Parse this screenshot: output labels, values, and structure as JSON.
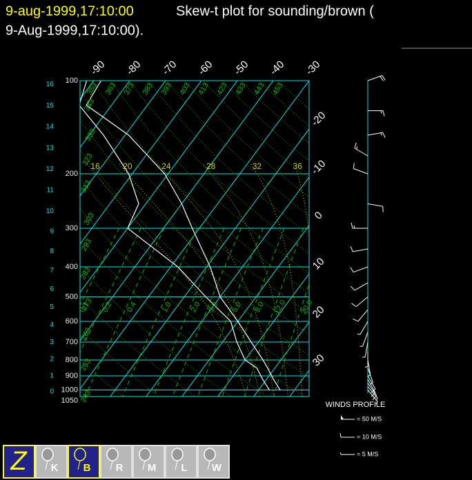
{
  "header": {
    "date": "9-aug-1999,17:10:00",
    "title": "Skew-t plot for sounding/brown (",
    "title_line2": "9-Aug-1999,17:10:00)."
  },
  "chart_data": {
    "type": "skewt",
    "pressure_ticks": [
      100,
      200,
      300,
      400,
      500,
      600,
      700,
      800,
      900,
      1000,
      1050
    ],
    "height_ticks": [
      0,
      1,
      2,
      3,
      4,
      5,
      6,
      7,
      8,
      9,
      10,
      11,
      12,
      13,
      14,
      15,
      16
    ],
    "isotherms_top": [
      -90,
      -80,
      -70,
      -60,
      -50,
      -40,
      -30
    ],
    "isotherms_right": [
      -20,
      -10,
      0,
      10,
      20,
      30
    ],
    "dry_adiabats": [
      243,
      253,
      263,
      273,
      283,
      293,
      303,
      313,
      323,
      333,
      343,
      353,
      363,
      373,
      383,
      393,
      403,
      413,
      423,
      433,
      443,
      453
    ],
    "moist_adiabats": [
      16,
      20,
      24,
      28,
      32,
      36
    ],
    "mixing_ratios": [
      0.1,
      0.2,
      0.4,
      {
        "value": 1,
        "label": "1.0"
      },
      {
        "value": 2,
        "label": "2.0"
      },
      {
        "value": 3,
        "label": "3.0"
      },
      {
        "value": 5,
        "label": "5.0"
      },
      {
        "value": 8,
        "label": "8.0"
      },
      {
        "value": 12,
        "label": "12.0"
      },
      {
        "value": 20,
        "label": "20.0"
      }
    ],
    "pressure": [
      1000,
      925,
      850,
      800,
      700,
      600,
      500,
      400,
      300,
      250,
      200,
      150,
      120,
      100
    ],
    "series": [
      {
        "color": "#ffffff",
        "values": [
          26,
          22,
          18,
          15,
          8,
          0,
          -10,
          -19,
          -32,
          -40,
          -51,
          -69,
          -87,
          -88
        ]
      },
      {
        "color": "#ffffff",
        "values": [
          23,
          19,
          15,
          10,
          4,
          -2,
          -14,
          -28,
          -50,
          -52,
          -61,
          -76,
          -89,
          -92
        ]
      }
    ],
    "winds": {
      "title": "WINDS PROFILE",
      "pressure": [
        1000,
        975,
        950,
        925,
        900,
        850,
        800,
        750,
        700,
        650,
        600,
        550,
        500,
        450,
        400,
        350,
        300,
        250,
        200,
        175,
        150,
        125,
        100
      ],
      "direction": [
        140,
        140,
        145,
        150,
        150,
        160,
        170,
        180,
        190,
        200,
        210,
        220,
        230,
        240,
        250,
        260,
        270,
        100,
        290,
        300,
        80,
        90,
        70
      ],
      "speed": [
        5,
        8,
        10,
        10,
        10,
        8,
        8,
        5,
        5,
        5,
        8,
        10,
        10,
        10,
        12,
        12,
        15,
        10,
        10,
        15,
        15,
        15,
        20
      ],
      "legend": [
        "= 50 M/S",
        "= 10 M/S",
        "= 5 M/S"
      ]
    }
  },
  "buttons": [
    "Z",
    "K",
    "B",
    "R",
    "M",
    "L",
    "W"
  ]
}
